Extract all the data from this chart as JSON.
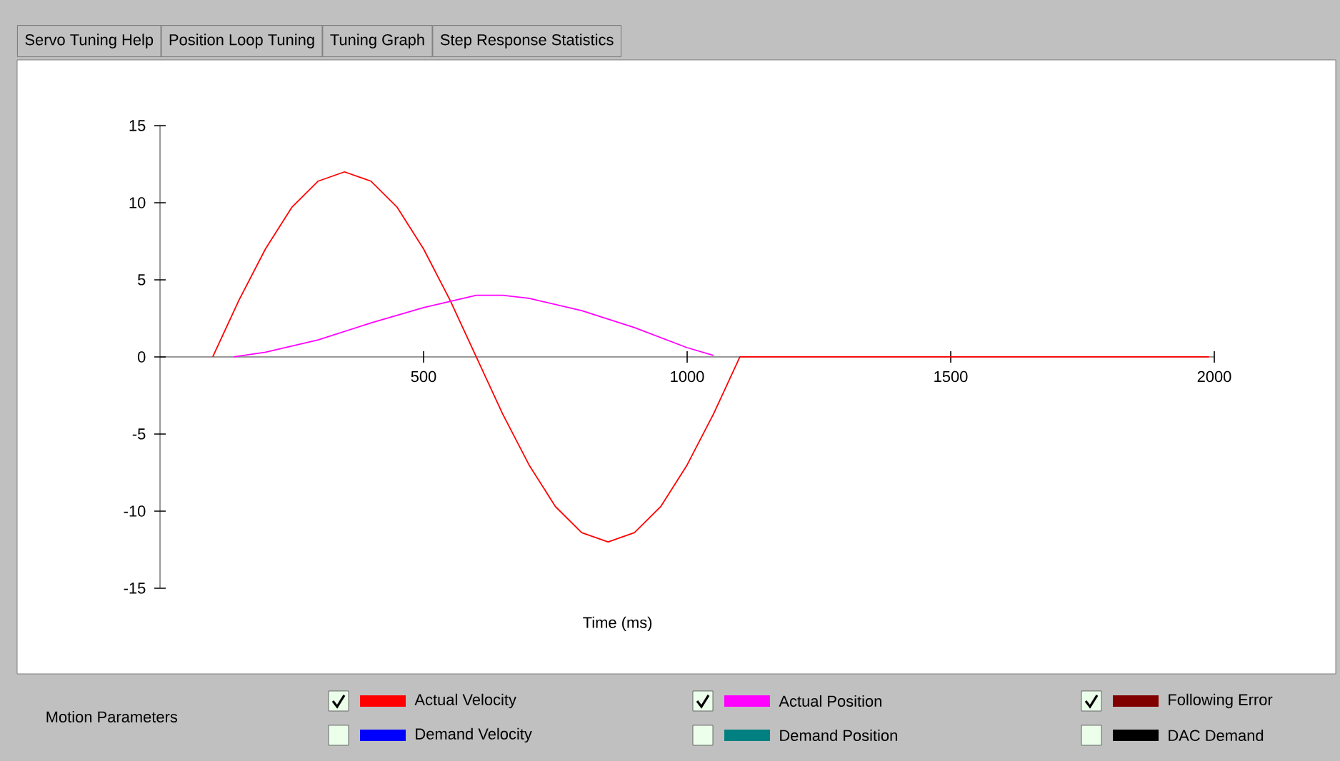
{
  "chart_data": {
    "type": "line",
    "xlabel": "Time (ms)",
    "legend_title": "Motion Parameters",
    "legend": "bottom",
    "marker": "none",
    "line_style": "solid",
    "annotations": [
      "Servo Tuning Help",
      "Position Loop Tuning",
      "Tuning Graph",
      "Step Response Statistics"
    ],
    "xlim": [
      0,
      2000
    ],
    "xticks": [
      500,
      1000,
      1500,
      2000
    ],
    "ylim": [
      -15,
      15
    ],
    "yticks": [
      -15,
      -10,
      -5,
      0,
      5,
      10,
      15
    ],
    "series": [
      {
        "name": "Actual Velocity",
        "color": "#ff0000",
        "x": [
          100,
          150,
          200,
          250,
          300,
          350,
          400,
          450,
          500,
          550,
          600,
          650,
          700,
          750,
          800,
          850,
          900,
          950,
          1000,
          1050,
          1100,
          1500,
          1990
        ],
        "values": [
          0,
          3.7,
          7.0,
          9.7,
          11.4,
          12,
          11.4,
          9.7,
          7.0,
          3.7,
          0,
          -3.7,
          -7.0,
          -9.7,
          -11.4,
          -12,
          -11.4,
          -9.7,
          -7.0,
          -3.7,
          0,
          0,
          0
        ]
      },
      {
        "name": "Demand Velocity",
        "color": "#0000ff"
      },
      {
        "name": "Actual Position",
        "color": "#ff00ff",
        "x": [
          140,
          200,
          300,
          400,
          500,
          600,
          650,
          700,
          800,
          900,
          1000,
          1050
        ],
        "values": [
          0,
          0.3,
          1.1,
          2.2,
          3.2,
          4.0,
          4.0,
          3.8,
          3.0,
          1.9,
          0.6,
          0.1
        ]
      },
      {
        "name": "Demand Position",
        "color": "#008080"
      },
      {
        "name": "Following Error",
        "color": "#800000",
        "values": [
          null
        ]
      },
      {
        "name": "DAC Demand",
        "color": "#000000"
      }
    ]
  }
}
